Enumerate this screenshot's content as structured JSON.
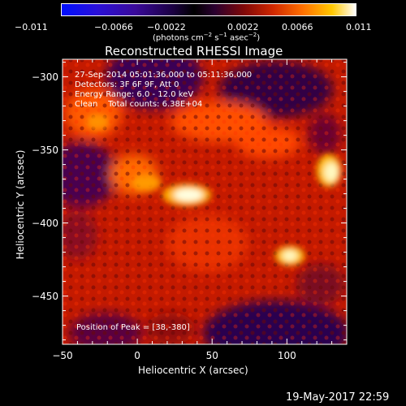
{
  "colorbar": {
    "ticks": [
      "−0.011",
      "−0.0066",
      "−0.0022",
      "0.0022",
      "0.0066",
      "0.011"
    ],
    "unit_prefix": "(photons cm",
    "unit_exp1": "−2",
    "unit_mid": " s",
    "unit_exp2": "−1",
    "unit_mid2": " asec",
    "unit_exp3": "−2",
    "unit_suffix": ")",
    "colors": [
      "#0000ff",
      "#3a00c0",
      "#1a0046",
      "#000000",
      "#2a0030",
      "#8a0a0a",
      "#d02000",
      "#ff6a00",
      "#ffc000",
      "#ffffff"
    ]
  },
  "plot": {
    "title": "Reconstructed RHESSI Image",
    "xlabel": "Heliocentric X (arcsec)",
    "ylabel": "Heliocentric Y (arcsec)",
    "x_ticks": [
      -50,
      0,
      50,
      100
    ],
    "y_ticks": [
      -300,
      -350,
      -400,
      -450
    ],
    "x_range": [
      -50,
      140
    ],
    "y_range": [
      -483,
      -288
    ]
  },
  "info": {
    "line1": "27-Sep-2014 05:01:36.000 to 05:11:36.000",
    "line2": "Detectors: 3F 6F 9F, Att 0",
    "line3": "Energy Range: 6.0 - 12.0 keV",
    "line4": "Clean    Total counts: 6.38E+04",
    "peak": "Position of Peak = [38,-380]"
  },
  "footer": {
    "date": "19-May-2017 22:59"
  }
}
